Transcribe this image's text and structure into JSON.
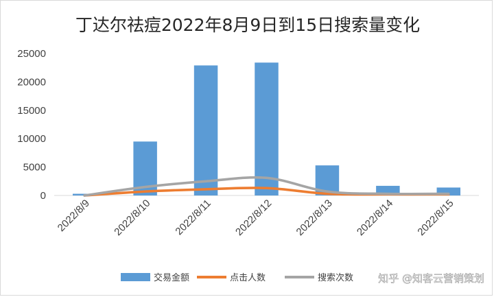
{
  "chart_data": {
    "type": "bar",
    "title": "丁达尔祛痘2022年8月9日到15日搜索量变化",
    "categories": [
      "2022/8/9",
      "2022/8/10",
      "2022/8/11",
      "2022/8/12",
      "2022/8/13",
      "2022/8/14",
      "2022/8/15"
    ],
    "ylim": [
      0,
      25000
    ],
    "yticks": [
      0,
      5000,
      10000,
      15000,
      20000,
      25000
    ],
    "grid": false,
    "legend_position": "bottom",
    "series": [
      {
        "name": "交易金额",
        "type": "bar",
        "color": "#5b9bd5",
        "values": [
          300,
          9500,
          22900,
          23400,
          5300,
          1700,
          1400
        ]
      },
      {
        "name": "点击人数",
        "type": "line",
        "color": "#ed7d31",
        "values": [
          0,
          700,
          1100,
          1300,
          300,
          200,
          200
        ]
      },
      {
        "name": "搜索次数",
        "type": "line",
        "color": "#a5a5a5",
        "values": [
          0,
          1500,
          2500,
          3100,
          700,
          300,
          300
        ]
      }
    ]
  },
  "watermark": "知乎 @知客云营销策划"
}
